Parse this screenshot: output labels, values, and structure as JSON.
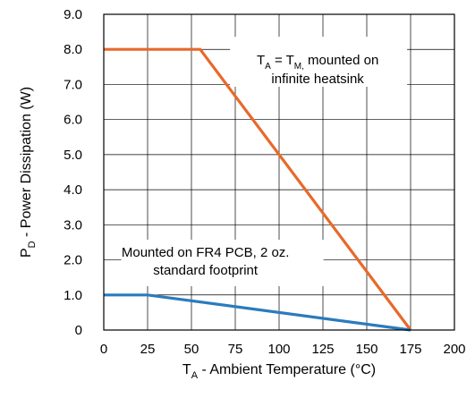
{
  "chart_data": {
    "type": "line",
    "title": "",
    "xlabel": {
      "main": "T",
      "sub": "A",
      "rest": " - Ambient Temperature (°C)"
    },
    "ylabel": {
      "main": "P",
      "sub": "D",
      "rest": " - Power Dissipation  (W)"
    },
    "xlim": [
      0,
      200
    ],
    "ylim": [
      0,
      9
    ],
    "x_ticks": [
      0,
      25,
      50,
      75,
      100,
      125,
      150,
      175,
      200
    ],
    "x_tick_labels": [
      "0",
      "25",
      "50",
      "75",
      "100",
      "125",
      "150",
      "175",
      "200"
    ],
    "y_ticks": [
      0,
      1,
      2,
      3,
      4,
      5,
      6,
      7,
      8,
      9
    ],
    "y_tick_labels": [
      "0",
      "1.0",
      "2.0",
      "3.0",
      "4.0",
      "5.0",
      "6.0",
      "7.0",
      "8.0",
      "9.0"
    ],
    "grid": true,
    "series": [
      {
        "color": "#e8692a",
        "points": [
          [
            0,
            8.0
          ],
          [
            55,
            8.0
          ],
          [
            175,
            0
          ]
        ]
      },
      {
        "color": "#2a7bbd",
        "points": [
          [
            0,
            1.0
          ],
          [
            25,
            1.0
          ],
          [
            175,
            0
          ]
        ]
      }
    ],
    "annotations": [
      {
        "series": 0,
        "line1": {
          "parts": [
            [
              "T",
              ""
            ],
            [
              "A",
              "sub"
            ],
            [
              " = T",
              ""
            ],
            [
              "M,",
              "sub"
            ],
            [
              " mounted on",
              ""
            ]
          ]
        },
        "line2": "infinite heatsink"
      },
      {
        "series": 1,
        "line1": "Mounted on FR4 PCB, 2 oz.",
        "line2": "standard footprint"
      }
    ]
  }
}
